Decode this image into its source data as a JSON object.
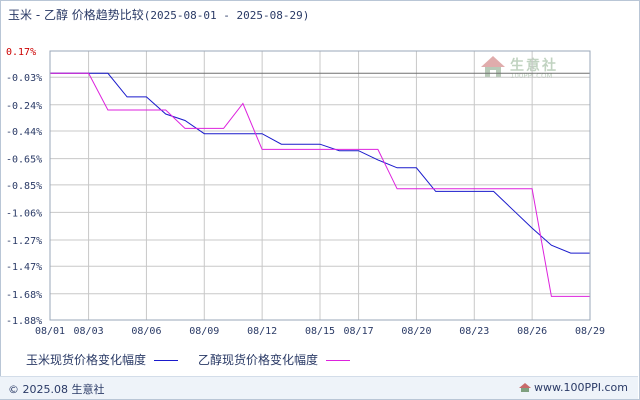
{
  "header": {
    "title": "玉米 - 乙醇 价格趋势比较",
    "date_range": "(2025-08-01 - 2025-08-29)"
  },
  "watermark": {
    "name": "生意社",
    "url": "100PPI.COM"
  },
  "footer": {
    "copyright": "© 2025.08 生意社",
    "site": "www.100PPI.com"
  },
  "colors": {
    "corn_line": "#1a1acc",
    "ethanol_line": "#dd22dd",
    "grid": "#c8c8c8",
    "axis_text": "#2a3a66",
    "top_tick_text": "#cc0000"
  },
  "chart_data": {
    "type": "line",
    "title": "玉米 - 乙醇 价格趋势比较",
    "xlabel": "",
    "ylabel": "",
    "x_ticks": [
      "08/01",
      "08/03",
      "08/06",
      "08/09",
      "08/12",
      "08/15",
      "08/17",
      "08/20",
      "08/23",
      "08/26",
      "08/29"
    ],
    "y_ticks": [
      "0.17%",
      "-0.03%",
      "-0.24%",
      "-0.44%",
      "-0.65%",
      "-0.85%",
      "-1.06%",
      "-1.27%",
      "-1.47%",
      "-1.68%",
      "-1.88%"
    ],
    "y_tick_values": [
      0.17,
      -0.03,
      -0.24,
      -0.44,
      -0.65,
      -0.85,
      -1.06,
      -1.27,
      -1.47,
      -1.68,
      -1.88
    ],
    "ylim": [
      -1.88,
      0.17
    ],
    "xlim": [
      "08/01",
      "08/29"
    ],
    "grid": true,
    "legend_position": "bottom",
    "series": [
      {
        "name": "玉米现货价格变化幅度",
        "color": "#1a1acc",
        "x": [
          "08/01",
          "08/04",
          "08/05",
          "08/06",
          "08/07",
          "08/08",
          "08/09",
          "08/10",
          "08/11",
          "08/12",
          "08/13",
          "08/14",
          "08/15",
          "08/16",
          "08/17",
          "08/18",
          "08/19",
          "08/20",
          "08/21",
          "08/22",
          "08/23",
          "08/24",
          "08/25",
          "08/26",
          "08/27",
          "08/28",
          "08/29"
        ],
        "values": [
          0.0,
          0.0,
          -0.18,
          -0.18,
          -0.31,
          -0.36,
          -0.46,
          -0.46,
          -0.46,
          -0.46,
          -0.54,
          -0.54,
          -0.54,
          -0.59,
          -0.59,
          -0.66,
          -0.72,
          -0.72,
          -0.9,
          -0.9,
          -0.9,
          -0.9,
          -1.04,
          -1.18,
          -1.31,
          -1.37,
          -1.37
        ]
      },
      {
        "name": "乙醇现货价格变化幅度",
        "color": "#dd22dd",
        "x": [
          "08/01",
          "08/02",
          "08/03",
          "08/04",
          "08/05",
          "08/06",
          "08/07",
          "08/08",
          "08/09",
          "08/10",
          "08/11",
          "08/12",
          "08/13",
          "08/14",
          "08/15",
          "08/16",
          "08/17",
          "08/18",
          "08/19",
          "08/20",
          "08/21",
          "08/22",
          "08/23",
          "08/24",
          "08/25",
          "08/26",
          "08/27",
          "08/28",
          "08/29"
        ],
        "values": [
          0.0,
          0.0,
          0.0,
          -0.28,
          -0.28,
          -0.28,
          -0.28,
          -0.42,
          -0.42,
          -0.42,
          -0.23,
          -0.58,
          -0.58,
          -0.58,
          -0.58,
          -0.58,
          -0.58,
          -0.58,
          -0.88,
          -0.88,
          -0.88,
          -0.88,
          -0.88,
          -0.88,
          -0.88,
          -0.88,
          -1.7,
          -1.7,
          -1.7
        ]
      }
    ]
  }
}
